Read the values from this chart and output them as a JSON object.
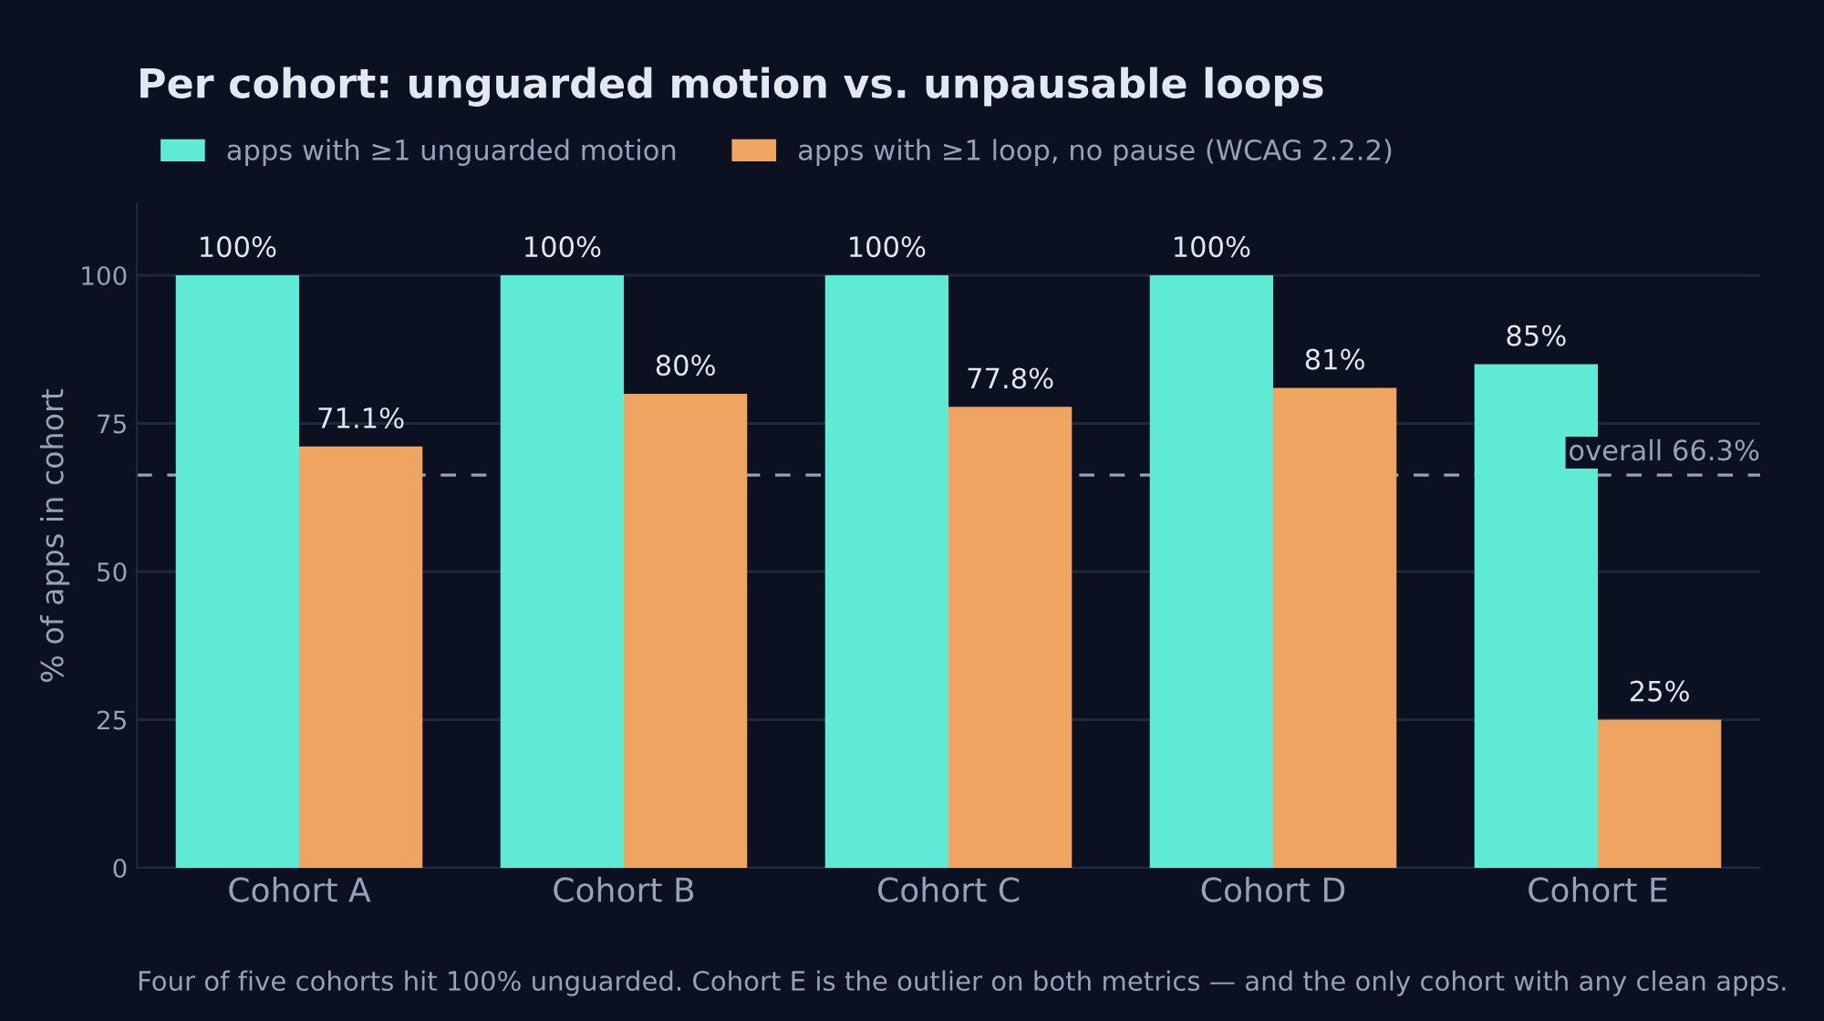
{
  "chart_data": {
    "type": "bar",
    "title": "Per cohort: unguarded motion vs. unpausable loops",
    "categories": [
      "Cohort A",
      "Cohort B",
      "Cohort C",
      "Cohort D",
      "Cohort E"
    ],
    "series": [
      {
        "name": "apps with ≥1 unguarded motion",
        "color": "#5eead4",
        "values": [
          100,
          100,
          100,
          100,
          85
        ],
        "value_labels": [
          "100%",
          "100%",
          "100%",
          "100%",
          "85%"
        ]
      },
      {
        "name": "apps with ≥1 loop, no pause (WCAG 2.2.2)",
        "color": "#f0a462",
        "values": [
          71.1,
          80,
          77.8,
          81,
          25
        ],
        "value_labels": [
          "71.1%",
          "80%",
          "77.8%",
          "81%",
          "25%"
        ]
      }
    ],
    "ylabel": "% of apps in cohort",
    "ylim": [
      0,
      112
    ],
    "yticks": [
      0,
      25,
      50,
      75,
      100
    ],
    "grid": "y",
    "legend": "top left",
    "ref_lines": [
      {
        "axis": "y",
        "value": 66.3,
        "label": "overall 66.3%",
        "color": "#94a3b8",
        "line_style": "dashed"
      }
    ],
    "annotations": [
      "Four of five cohorts hit 100% unguarded. Cohort E is the outlier on both metrics — and the only cohort with any clean apps."
    ]
  }
}
